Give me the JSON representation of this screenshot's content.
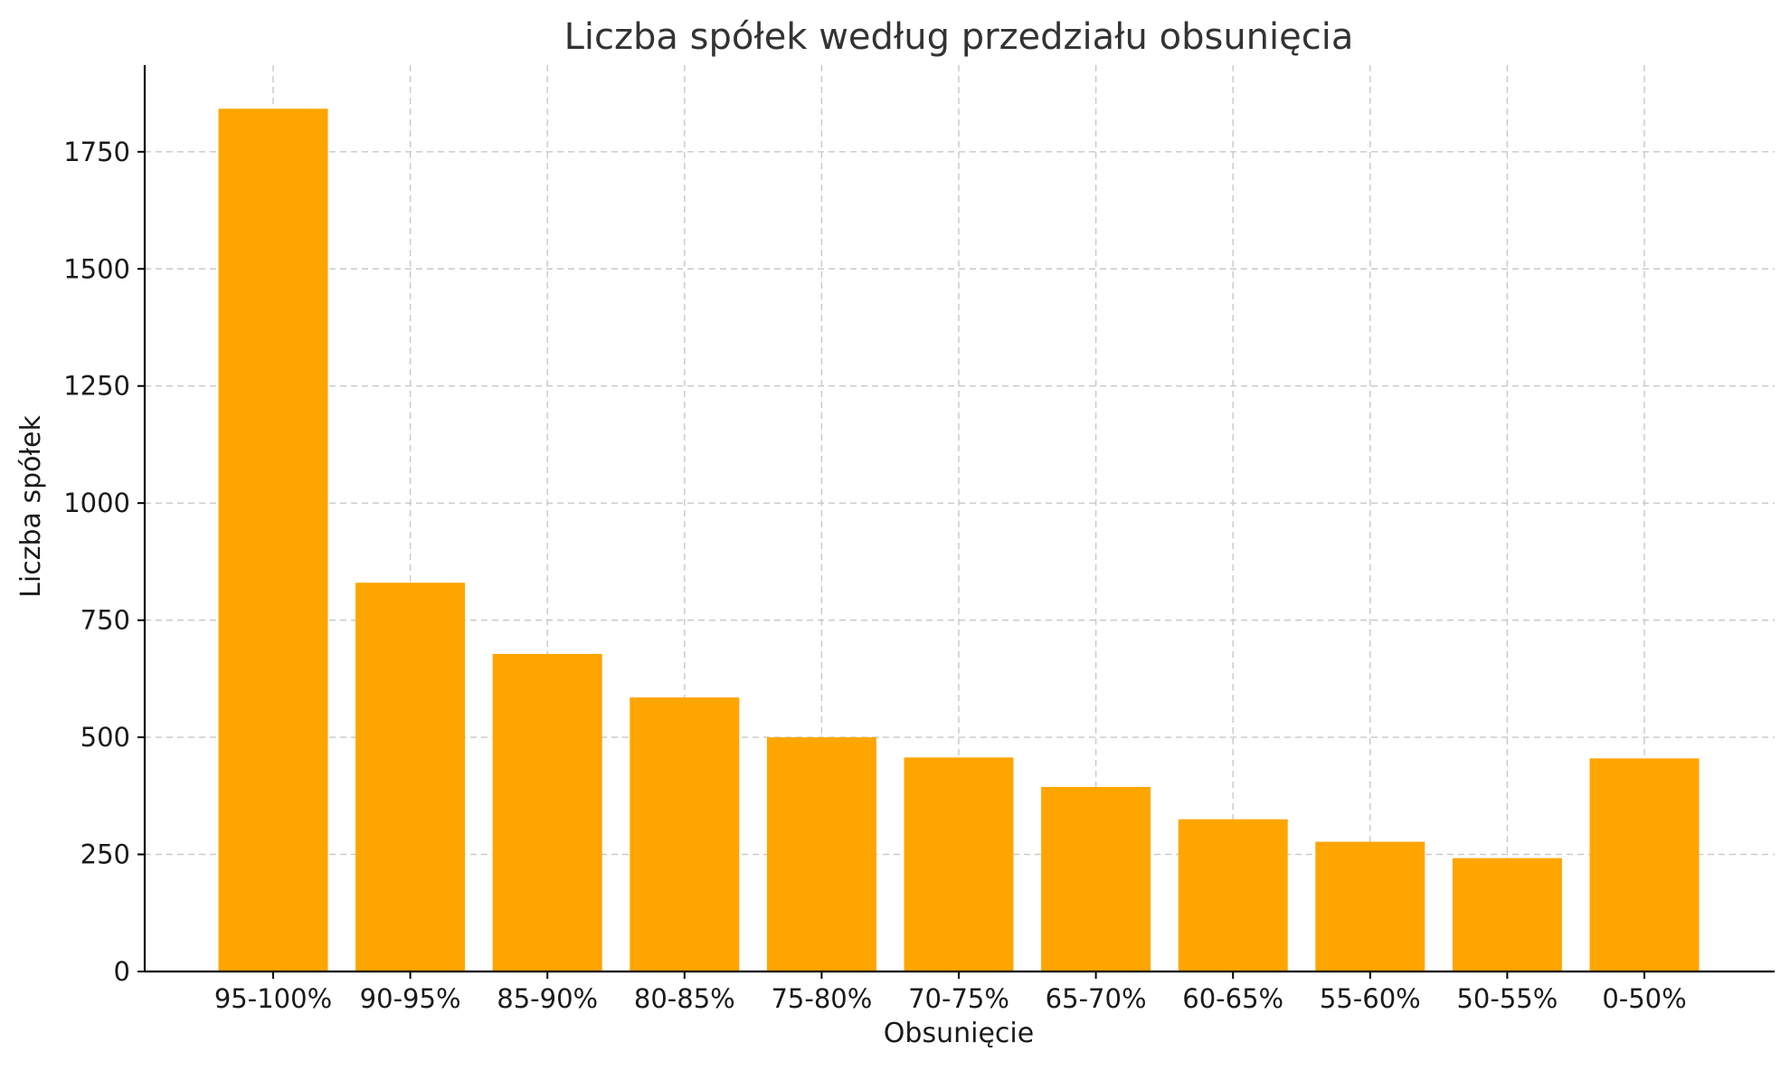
{
  "chart_data": {
    "type": "bar",
    "title": "Liczba spółek według przedziału obsunięcia",
    "xlabel": "Obsunięcie",
    "ylabel": "Liczba spółek",
    "categories": [
      "95-100%",
      "90-95%",
      "85-90%",
      "80-85%",
      "75-80%",
      "70-75%",
      "65-70%",
      "60-65%",
      "55-60%",
      "50-55%",
      "0-50%"
    ],
    "values": [
      1842,
      830,
      678,
      585,
      500,
      457,
      394,
      325,
      277,
      242,
      455
    ],
    "ylim": [
      0,
      1935
    ],
    "yticks": [
      0,
      250,
      500,
      750,
      1000,
      1250,
      1500,
      1750
    ],
    "grid": true,
    "bar_color": "#FFA500"
  }
}
